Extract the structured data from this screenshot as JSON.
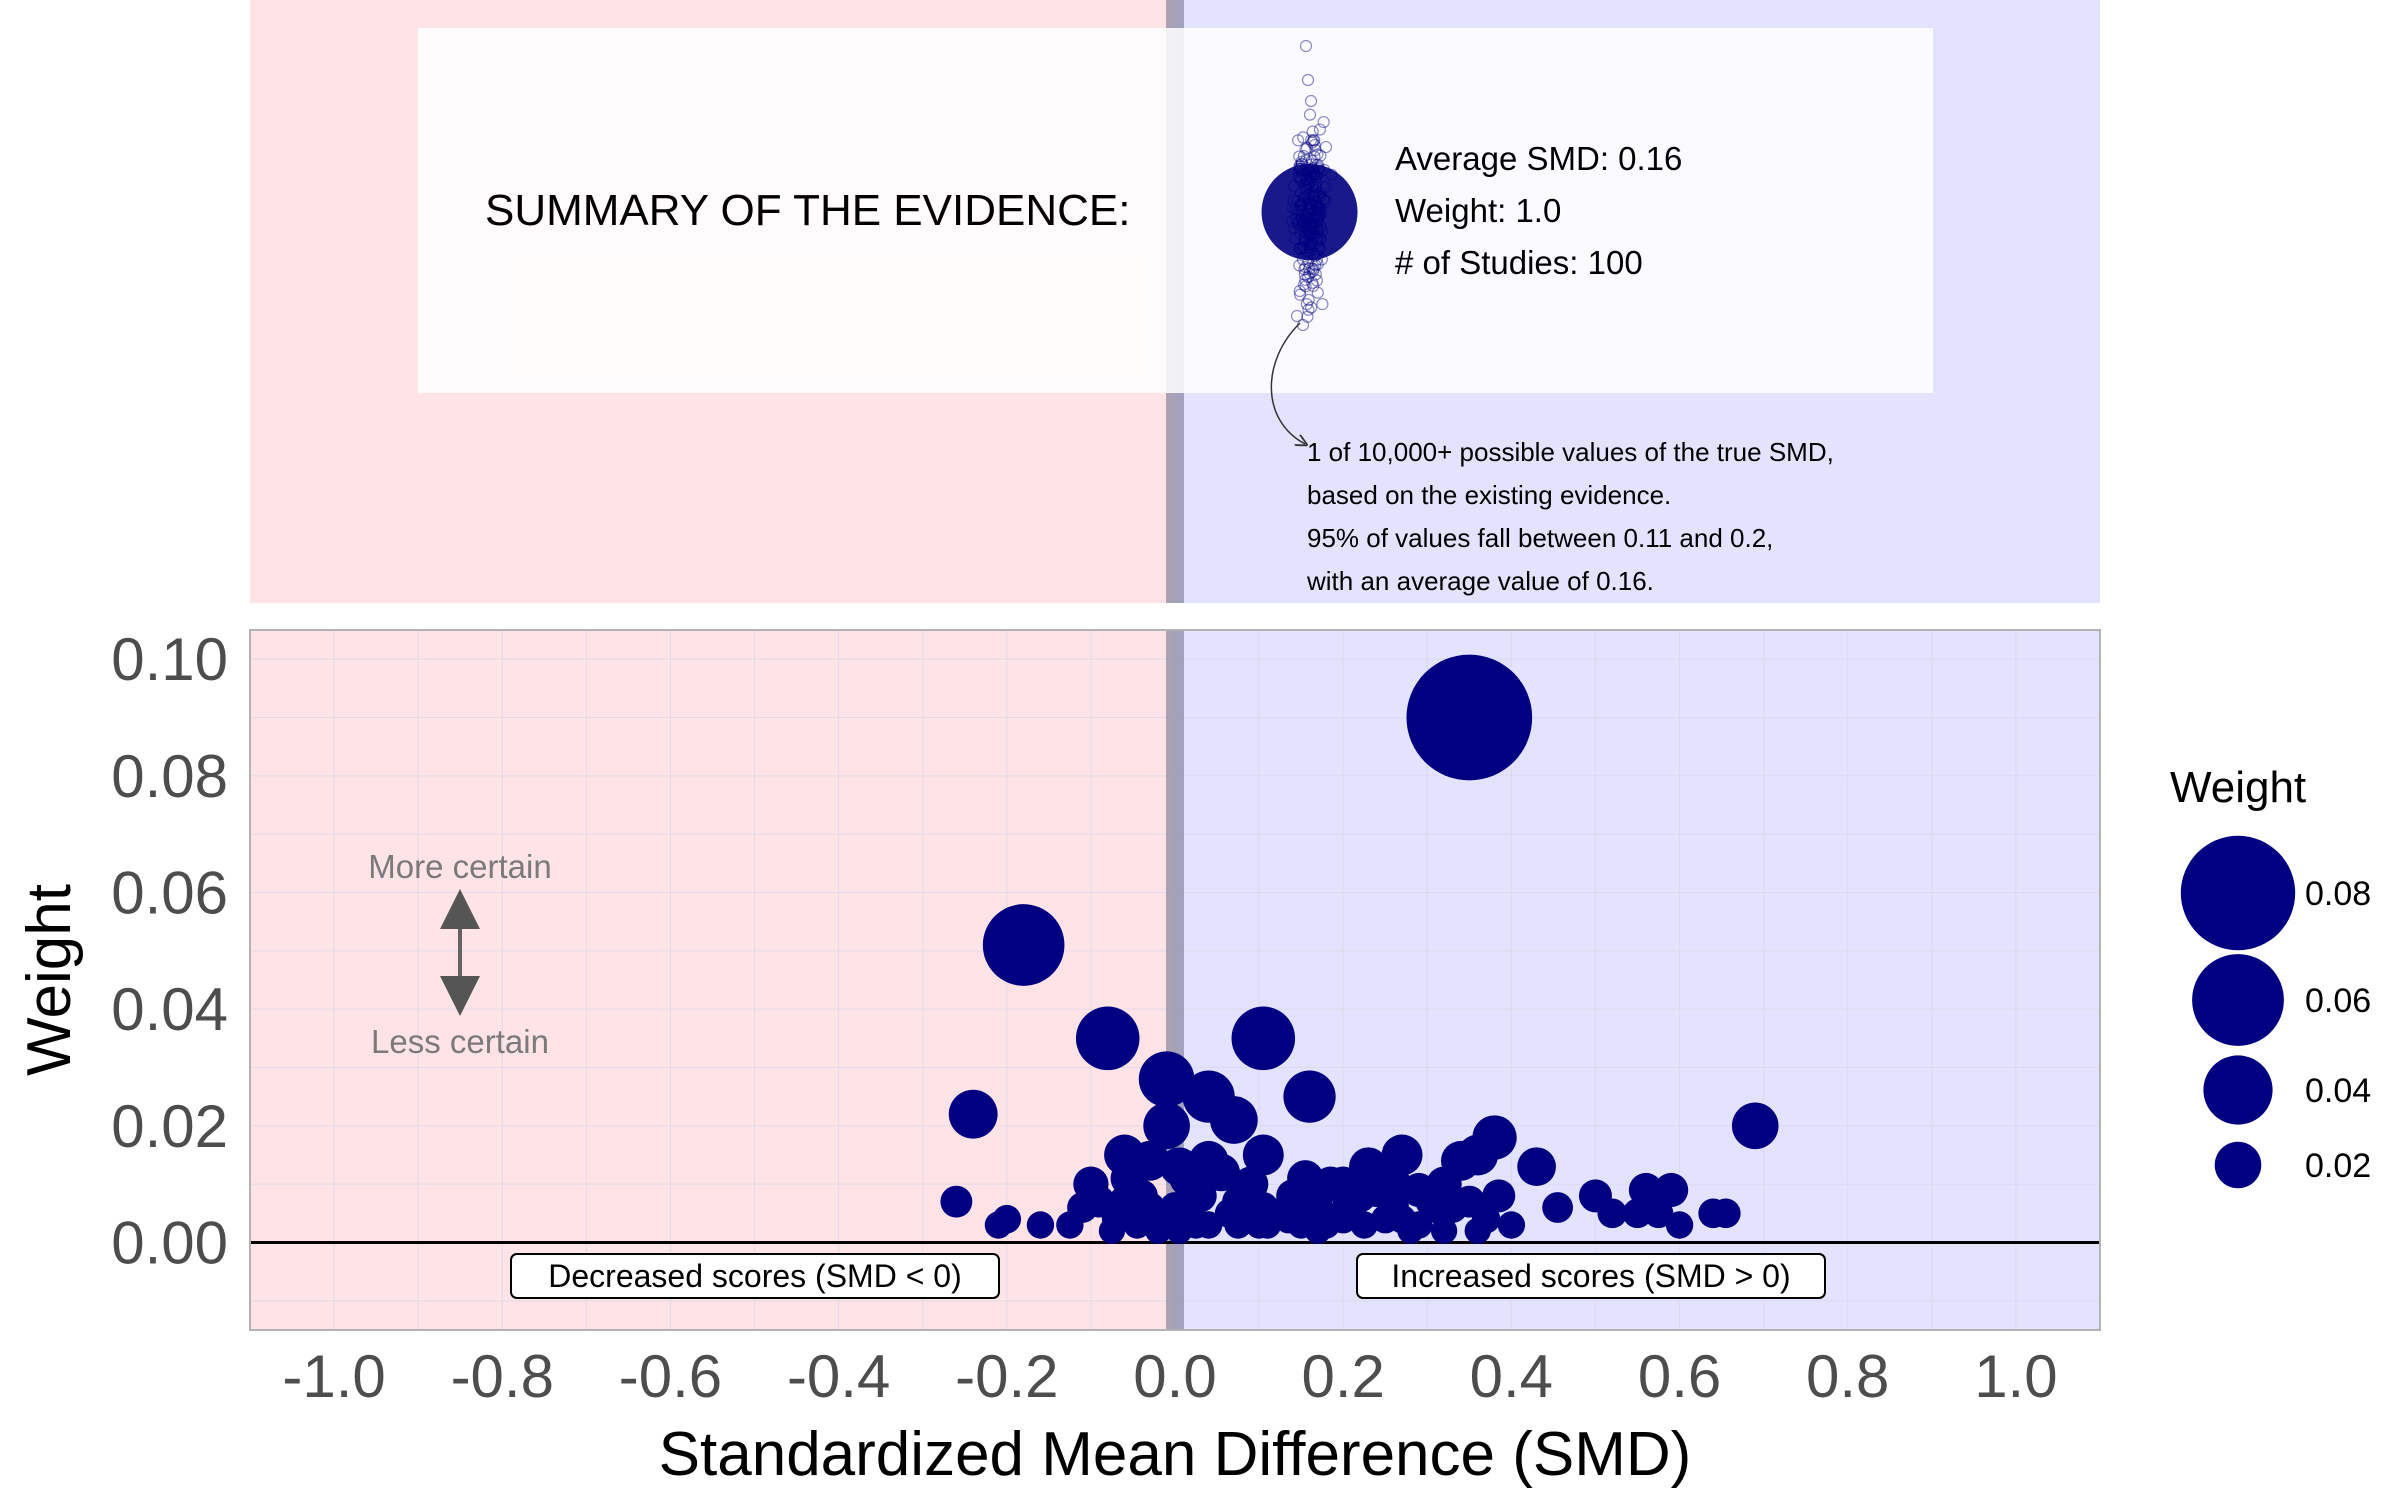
{
  "chart_data": {
    "type": "scatter",
    "xlabel": "Standardized Mean Difference (SMD)",
    "ylabel": "Weight",
    "xlim": [
      -1.1,
      1.1
    ],
    "ylim": [
      -0.015,
      0.105
    ],
    "x_ticks": [
      -1.0,
      -0.8,
      -0.6,
      -0.4,
      -0.2,
      0.0,
      0.2,
      0.4,
      0.6,
      0.8,
      1.0
    ],
    "x_tick_labels": [
      "-1.0",
      "-0.8",
      "-0.6",
      "-0.4",
      "-0.2",
      "0.0",
      "0.2",
      "0.4",
      "0.6",
      "0.8",
      "1.0"
    ],
    "y_ticks": [
      0.0,
      0.02,
      0.04,
      0.06,
      0.08,
      0.1
    ],
    "y_tick_labels": [
      "0.00",
      "0.02",
      "0.04",
      "0.06",
      "0.08",
      "0.10"
    ],
    "grid": true,
    "regions": {
      "negative_color": "#ffe3e6",
      "positive_color": "#e3e3ff",
      "negative_label": "Decreased scores (SMD < 0)",
      "positive_label": "Increased scores (SMD > 0)"
    },
    "point_color": "#000080",
    "annotations": {
      "more_certain": "More certain",
      "less_certain": "Less certain"
    },
    "legend": {
      "title": "Weight",
      "position": "right",
      "entries": [
        {
          "label": "0.08",
          "value": 0.08
        },
        {
          "label": "0.06",
          "value": 0.06
        },
        {
          "label": "0.04",
          "value": 0.04
        },
        {
          "label": "0.02",
          "value": 0.02
        }
      ]
    },
    "points": [
      {
        "x": 0.35,
        "y": 0.09
      },
      {
        "x": -0.18,
        "y": 0.051
      },
      {
        "x": 0.105,
        "y": 0.035
      },
      {
        "x": -0.08,
        "y": 0.035
      },
      {
        "x": -0.01,
        "y": 0.028
      },
      {
        "x": 0.04,
        "y": 0.025
      },
      {
        "x": 0.16,
        "y": 0.025
      },
      {
        "x": -0.24,
        "y": 0.022
      },
      {
        "x": 0.07,
        "y": 0.021
      },
      {
        "x": -0.01,
        "y": 0.02
      },
      {
        "x": 0.69,
        "y": 0.02
      },
      {
        "x": 0.38,
        "y": 0.018
      },
      {
        "x": 0.36,
        "y": 0.015
      },
      {
        "x": 0.27,
        "y": 0.015
      },
      {
        "x": -0.06,
        "y": 0.015
      },
      {
        "x": 0.105,
        "y": 0.015
      },
      {
        "x": 0.04,
        "y": 0.014
      },
      {
        "x": 0.34,
        "y": 0.014
      },
      {
        "x": 0.43,
        "y": 0.013
      },
      {
        "x": -0.03,
        "y": 0.014
      },
      {
        "x": 0.23,
        "y": 0.013
      },
      {
        "x": 0.005,
        "y": 0.013
      },
      {
        "x": 0.055,
        "y": 0.012
      },
      {
        "x": 0.015,
        "y": 0.011
      },
      {
        "x": -0.055,
        "y": 0.011
      },
      {
        "x": 0.155,
        "y": 0.011
      },
      {
        "x": 0.2,
        "y": 0.01
      },
      {
        "x": -0.1,
        "y": 0.01
      },
      {
        "x": 0.26,
        "y": 0.01
      },
      {
        "x": 0.32,
        "y": 0.01
      },
      {
        "x": 0.09,
        "y": 0.01
      },
      {
        "x": 0.185,
        "y": 0.01
      },
      {
        "x": 0.56,
        "y": 0.009
      },
      {
        "x": 0.59,
        "y": 0.009
      },
      {
        "x": 0.24,
        "y": 0.009
      },
      {
        "x": 0.29,
        "y": 0.009
      },
      {
        "x": 0.385,
        "y": 0.008
      },
      {
        "x": -0.04,
        "y": 0.008
      },
      {
        "x": 0.03,
        "y": 0.008
      },
      {
        "x": 0.14,
        "y": 0.008
      },
      {
        "x": 0.5,
        "y": 0.008
      },
      {
        "x": 0.22,
        "y": 0.008
      },
      {
        "x": -0.09,
        "y": 0.007
      },
      {
        "x": -0.26,
        "y": 0.007
      },
      {
        "x": -0.06,
        "y": 0.007
      },
      {
        "x": 0.075,
        "y": 0.007
      },
      {
        "x": 0.305,
        "y": 0.007
      },
      {
        "x": 0.35,
        "y": 0.007
      },
      {
        "x": 0.455,
        "y": 0.006
      },
      {
        "x": -0.11,
        "y": 0.006
      },
      {
        "x": 0.0,
        "y": 0.006
      },
      {
        "x": -0.03,
        "y": 0.006
      },
      {
        "x": 0.105,
        "y": 0.006
      },
      {
        "x": 0.17,
        "y": 0.006
      },
      {
        "x": 0.205,
        "y": 0.006
      },
      {
        "x": 0.26,
        "y": 0.006
      },
      {
        "x": 0.31,
        "y": 0.006
      },
      {
        "x": 0.33,
        "y": 0.006
      },
      {
        "x": 0.55,
        "y": 0.005
      },
      {
        "x": 0.52,
        "y": 0.005
      },
      {
        "x": 0.575,
        "y": 0.005
      },
      {
        "x": 0.64,
        "y": 0.005
      },
      {
        "x": 0.655,
        "y": 0.005
      },
      {
        "x": 0.155,
        "y": 0.005
      },
      {
        "x": 0.065,
        "y": 0.005
      },
      {
        "x": 0.12,
        "y": 0.005
      },
      {
        "x": -0.2,
        "y": 0.004
      },
      {
        "x": 0.01,
        "y": 0.004
      },
      {
        "x": 0.02,
        "y": 0.004
      },
      {
        "x": 0.09,
        "y": 0.004
      },
      {
        "x": 0.2,
        "y": 0.004
      },
      {
        "x": 0.25,
        "y": 0.004
      },
      {
        "x": 0.27,
        "y": 0.004
      },
      {
        "x": 0.37,
        "y": 0.004
      },
      {
        "x": -0.07,
        "y": 0.004
      },
      {
        "x": 0.135,
        "y": 0.004
      },
      {
        "x": -0.01,
        "y": 0.003
      },
      {
        "x": 0.04,
        "y": 0.003
      },
      {
        "x": 0.1,
        "y": 0.003
      },
      {
        "x": 0.11,
        "y": 0.003
      },
      {
        "x": 0.15,
        "y": 0.003
      },
      {
        "x": 0.18,
        "y": 0.003
      },
      {
        "x": 0.225,
        "y": 0.003
      },
      {
        "x": 0.28,
        "y": 0.003
      },
      {
        "x": 0.29,
        "y": 0.003
      },
      {
        "x": 0.4,
        "y": 0.003
      },
      {
        "x": 0.6,
        "y": 0.003
      },
      {
        "x": -0.16,
        "y": 0.003
      },
      {
        "x": -0.125,
        "y": 0.003
      },
      {
        "x": -0.21,
        "y": 0.003
      },
      {
        "x": -0.045,
        "y": 0.003
      },
      {
        "x": 0.025,
        "y": 0.003
      },
      {
        "x": 0.075,
        "y": 0.003
      },
      {
        "x": -0.02,
        "y": 0.002
      },
      {
        "x": -0.075,
        "y": 0.002
      },
      {
        "x": 0.005,
        "y": 0.002
      },
      {
        "x": 0.17,
        "y": 0.002
      },
      {
        "x": 0.28,
        "y": 0.002
      },
      {
        "x": 0.32,
        "y": 0.002
      },
      {
        "x": 0.36,
        "y": 0.002
      }
    ],
    "summary": {
      "heading": "SUMMARY OF THE EVIDENCE:",
      "average_label": "Average SMD:  0.16",
      "weight_label": "Weight: 1.0",
      "studies_label": "# of Studies:  100",
      "average_smd": 0.16,
      "ci_low": 0.11,
      "ci_high": 0.2,
      "note_lines": [
        "1 of 10,000+ possible values of the true SMD,",
        "based on the existing evidence.",
        "95% of values fall between 0.11 and 0.2,",
        "with an average value of 0.16."
      ]
    }
  }
}
